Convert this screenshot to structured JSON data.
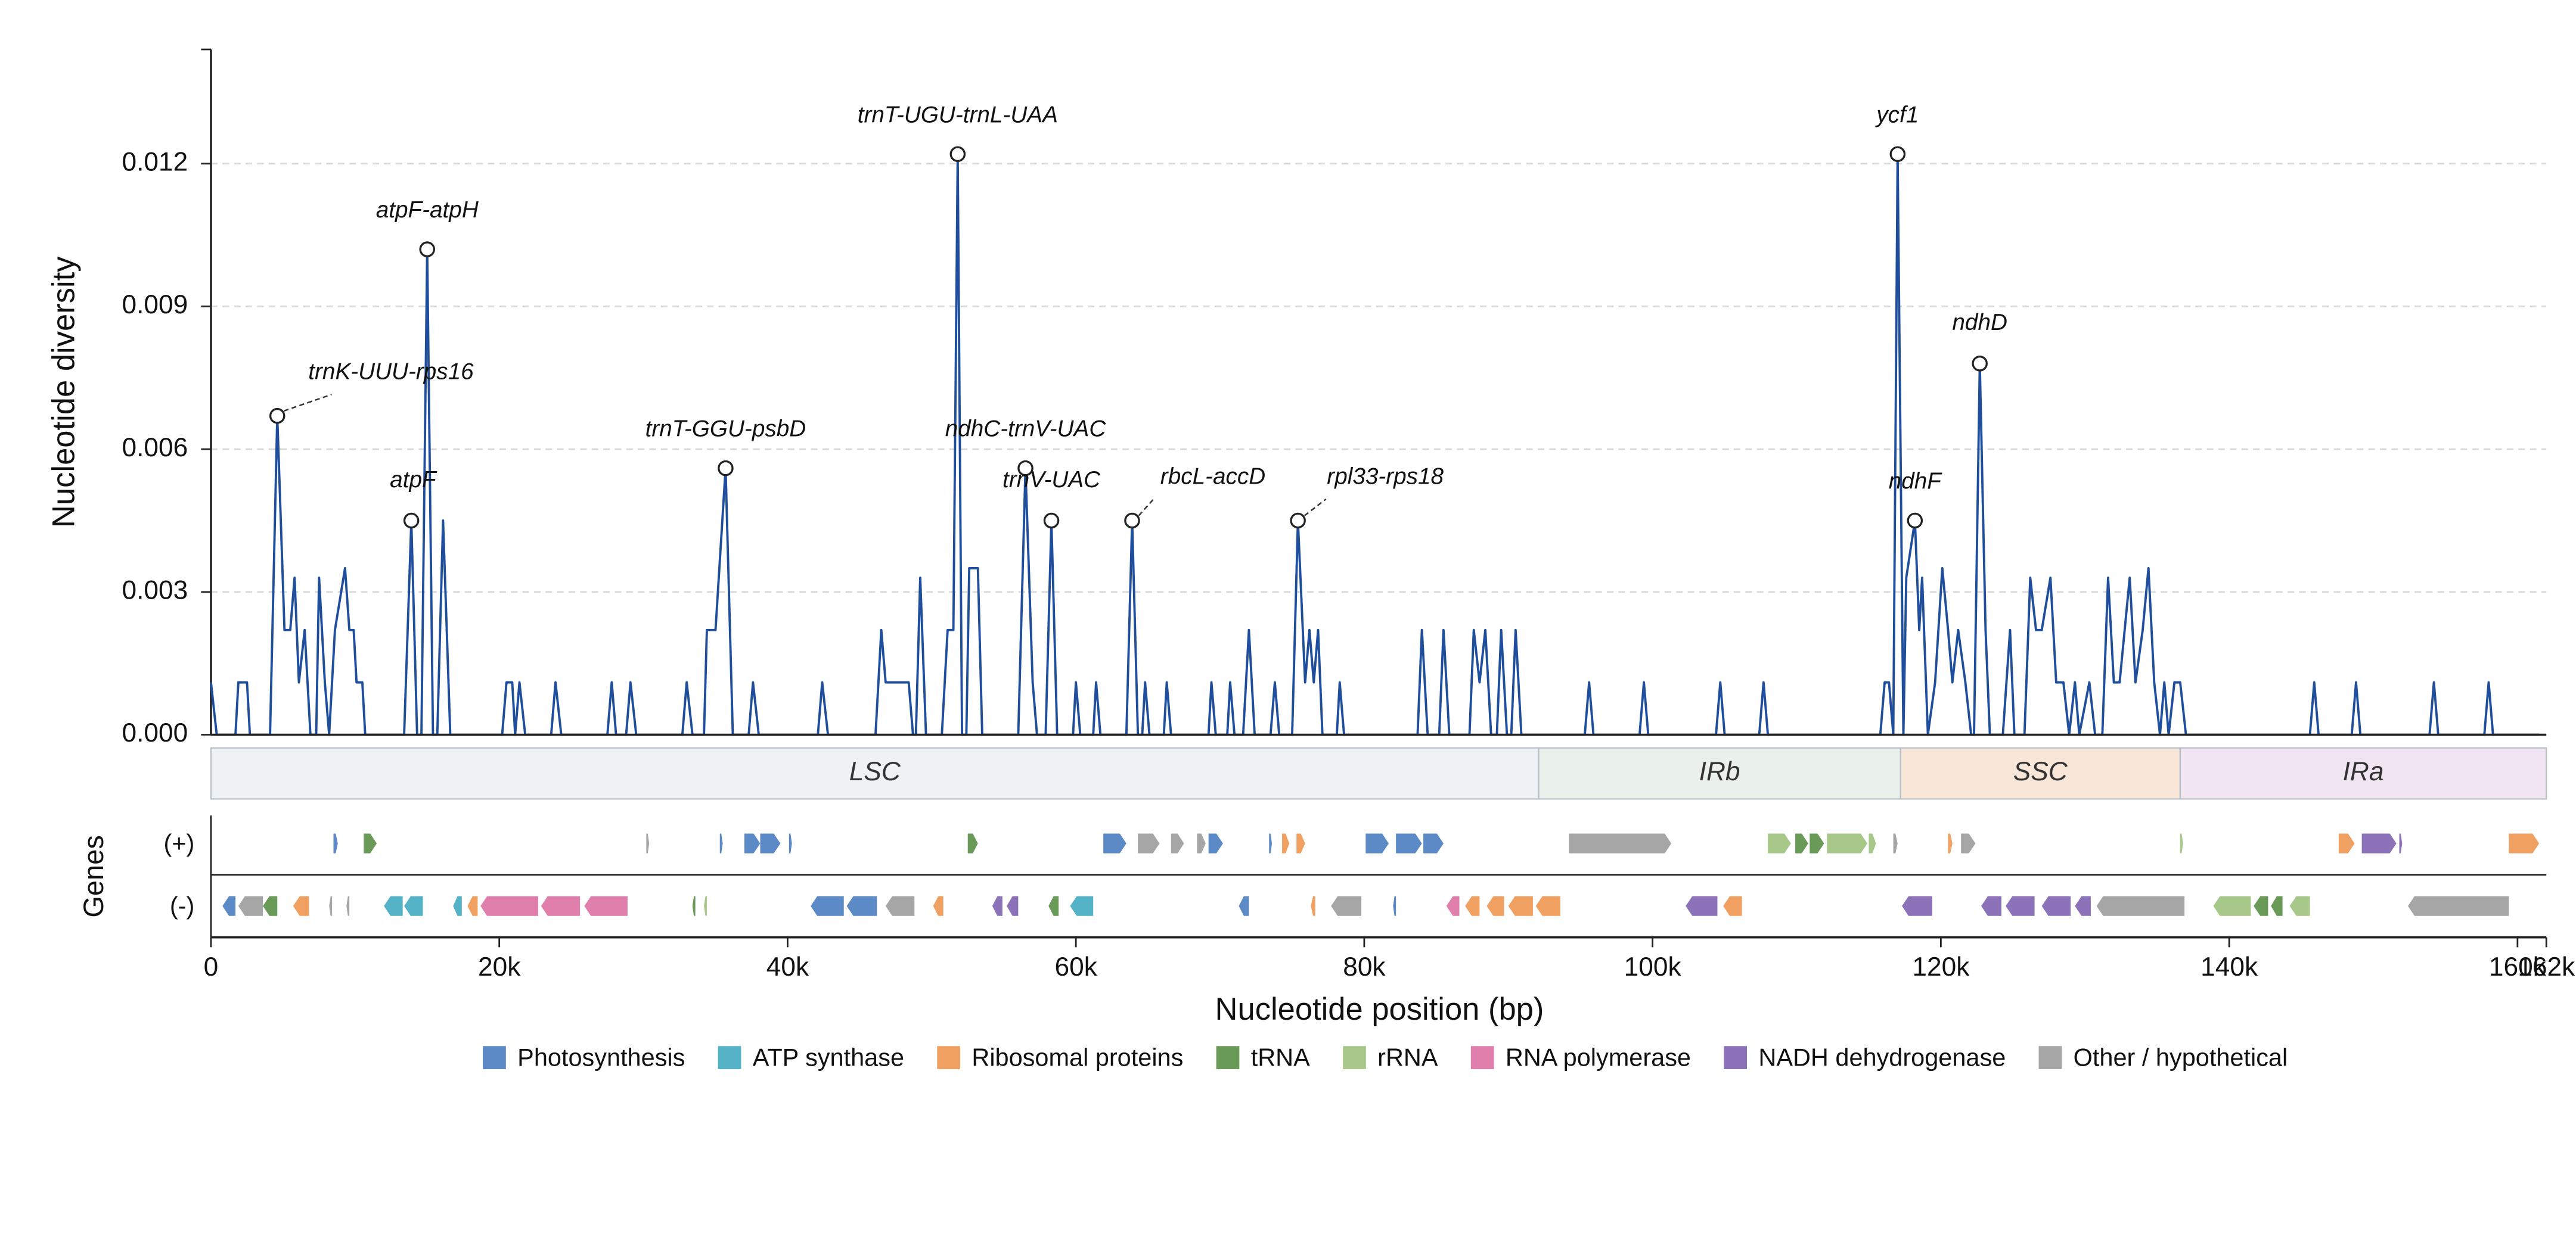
{
  "chart_data": {
    "type": "line",
    "y_label": "Nucleotide diversity",
    "x_label": "Nucleotide position (bp)",
    "genes_label": "Genes",
    "strand_labels": [
      "(+)",
      "(-)"
    ],
    "xlim": [
      0,
      162000
    ],
    "xticks": [
      0,
      {
        "value": 20000,
        "label": "20k"
      },
      {
        "value": 40000,
        "label": "40k"
      },
      {
        "value": 60000,
        "label": "60k"
      },
      {
        "value": 80000,
        "label": "80k"
      },
      {
        "value": 100000,
        "label": "100k"
      },
      {
        "value": 120000,
        "label": "120k"
      },
      {
        "value": 140000,
        "label": "140k"
      },
      {
        "value": 160000,
        "label": "160k"
      },
      {
        "value": 162000,
        "label": "162k"
      }
    ],
    "ylim": [
      0,
      0.0144
    ],
    "yticks": [
      {
        "value": 0,
        "label": "0.000"
      },
      0.003,
      0.006,
      0.009,
      0.012
    ],
    "grid": true,
    "series": [
      {
        "name": "Pi",
        "color": "#1f4e9c",
        "x": [
          0,
          400,
          1700,
          1900,
          2500,
          2700,
          4100,
          4600,
          5100,
          5500,
          5800,
          6100,
          6500,
          6900,
          7300,
          7500,
          7900,
          8200,
          8600,
          9300,
          9600,
          9900,
          10100,
          10500,
          10700,
          13400,
          13900,
          14300,
          14600,
          15000,
          15400,
          15700,
          16100,
          16600,
          20200,
          20500,
          20900,
          21100,
          21400,
          21800,
          23600,
          23900,
          24300,
          27500,
          27800,
          28100,
          28800,
          29100,
          29500,
          32700,
          33000,
          33400,
          34200,
          34400,
          35000,
          35700,
          36200,
          37300,
          37600,
          38000,
          42100,
          42400,
          42800,
          46100,
          46500,
          46800,
          48400,
          48700,
          48900,
          49200,
          49600,
          50700,
          51100,
          51500,
          51800,
          52100,
          52400,
          52600,
          53200,
          53500,
          56000,
          56500,
          57000,
          57300,
          57900,
          58300,
          58700,
          59800,
          60000,
          60300,
          61200,
          61400,
          61700,
          63500,
          63900,
          64300,
          64600,
          64800,
          65100,
          66100,
          66300,
          66600,
          69200,
          69400,
          69700,
          70500,
          70700,
          71000,
          71600,
          72000,
          72400,
          73500,
          73800,
          74100,
          75000,
          75400,
          75900,
          76200,
          76500,
          76800,
          77100,
          78100,
          78300,
          78600,
          83700,
          84000,
          84400,
          85200,
          85500,
          85900,
          87300,
          87600,
          88000,
          88400,
          88800,
          89200,
          89500,
          89900,
          90200,
          90500,
          90900,
          95300,
          95600,
          95900,
          99100,
          99400,
          99700,
          104400,
          104700,
          105000,
          107400,
          107700,
          108000,
          115800,
          116100,
          116400,
          116700,
          117000,
          117400,
          117600,
          118200,
          118500,
          118700,
          119100,
          119600,
          120100,
          120500,
          120800,
          121200,
          121700,
          122100,
          122300,
          122700,
          123100,
          123400,
          124300,
          124800,
          125100,
          125800,
          126200,
          126600,
          127000,
          127600,
          128000,
          128500,
          128900,
          129300,
          129600,
          130300,
          130700,
          131200,
          131600,
          132000,
          132400,
          133100,
          133500,
          134000,
          134400,
          134800,
          135200,
          135500,
          135800,
          136200,
          136600,
          137000,
          145600,
          145900,
          146200,
          148500,
          148800,
          149100,
          153900,
          154200,
          154500,
          157700,
          158000,
          158300,
          161500
        ],
        "values": [
          0.0011,
          0,
          0,
          0.0011,
          0.0011,
          0,
          0,
          0.0067,
          0.0022,
          0.0022,
          0.0033,
          0.0011,
          0.0022,
          0,
          0,
          0.0033,
          0.0011,
          0,
          0.0022,
          0.0035,
          0.0022,
          0.0022,
          0.0011,
          0.0011,
          0,
          0,
          0.0045,
          0,
          0,
          0.0102,
          0,
          0,
          0.0045,
          0,
          0,
          0.0011,
          0.0011,
          0,
          0.0011,
          0,
          0,
          0.0011,
          0,
          0,
          0.0011,
          0,
          0,
          0.0011,
          0,
          0,
          0.0011,
          0,
          0,
          0.0022,
          0.0022,
          0.0056,
          0,
          0,
          0.0011,
          0,
          0,
          0.0011,
          0,
          0,
          0.0022,
          0.0011,
          0.0011,
          0,
          0,
          0.0033,
          0,
          0,
          0.0022,
          0.0022,
          0.0122,
          0,
          0,
          0.0035,
          0.0035,
          0,
          0,
          0.0056,
          0.0011,
          0,
          0,
          0.0045,
          0,
          0,
          0.0011,
          0,
          0,
          0.0011,
          0,
          0,
          0.0045,
          0,
          0,
          0.0011,
          0,
          0,
          0.0011,
          0,
          0,
          0.0011,
          0,
          0,
          0.0011,
          0,
          0,
          0.0022,
          0,
          0,
          0.0011,
          0,
          0,
          0.0045,
          0.0011,
          0.0022,
          0.0011,
          0.0022,
          0,
          0,
          0.0011,
          0,
          0,
          0.0022,
          0,
          0,
          0.0022,
          0,
          0,
          0.0022,
          0.0011,
          0.0022,
          0,
          0,
          0.0022,
          0,
          0,
          0.0022,
          0,
          0,
          0.0011,
          0,
          0,
          0.0011,
          0,
          0,
          0.0011,
          0,
          0,
          0.0011,
          0,
          0,
          0.0011,
          0.0011,
          0,
          0.0122,
          0,
          0.0033,
          0.0045,
          0.0022,
          0.0033,
          0,
          0.0011,
          0.0035,
          0.0022,
          0.0011,
          0.0022,
          0.0011,
          0,
          0,
          0.0078,
          0.0022,
          0,
          0,
          0.0022,
          0,
          0,
          0.0033,
          0.0022,
          0.0022,
          0.0033,
          0.0011,
          0.0011,
          0,
          0.0011,
          0,
          0.0011,
          0,
          0,
          0.0033,
          0.0011,
          0.0011,
          0.0033,
          0.0011,
          0.0022,
          0.0035,
          0.0011,
          0,
          0.0011,
          0,
          0.0011,
          0.0011,
          0,
          0,
          0.0011,
          0,
          0,
          0.0011,
          0,
          0,
          0.0011,
          0,
          0,
          0.0011,
          0,
          0
        ]
      }
    ],
    "annotations": [
      {
        "label": "trnK-UUU-rps16",
        "x": 4600,
        "y": 0.0067
      },
      {
        "label": "atpF-atpH",
        "x": 15000,
        "y": 0.0102
      },
      {
        "label": "atpF",
        "x": 13900,
        "y": 0.0045
      },
      {
        "label": "trnT-GGU-psbD",
        "x": 35700,
        "y": 0.0056
      },
      {
        "label": "trnT-UGU-trnL-UAA",
        "x": 51800,
        "y": 0.0122
      },
      {
        "label": "ndhC-trnV-UAC",
        "x": 56500,
        "y": 0.0056
      },
      {
        "label": "trnV-UAC",
        "x": 58300,
        "y": 0.0045
      },
      {
        "label": "rbcL-accD",
        "x": 63900,
        "y": 0.0045
      },
      {
        "label": "rpl33-rps18",
        "x": 75400,
        "y": 0.0045
      },
      {
        "label": "ycf1",
        "x": 117000,
        "y": 0.0122
      },
      {
        "label": "ndhF",
        "x": 118200,
        "y": 0.0045
      },
      {
        "label": "ndhD",
        "x": 122700,
        "y": 0.0078
      }
    ],
    "regions": [
      {
        "name": "LSC",
        "start": 0,
        "end": 92100,
        "color": "#eef2f5"
      },
      {
        "name": "IRb",
        "start": 92100,
        "end": 117200,
        "color": "#eaf1ea"
      },
      {
        "name": "SSC",
        "start": 117200,
        "end": 136600,
        "color": "#f8e7d9"
      },
      {
        "name": "IRa",
        "start": 136600,
        "end": 162000,
        "color": "#f1e5f1"
      }
    ],
    "gene_categories": [
      {
        "name": "Photosynthesis",
        "color": "#5b8ac6"
      },
      {
        "name": "ATP synthase",
        "color": "#54b3c6"
      },
      {
        "name": "Ribosomal proteins",
        "color": "#f0a060"
      },
      {
        "name": "tRNA",
        "color": "#6a9a58"
      },
      {
        "name": "rRNA",
        "color": "#a8c88a"
      },
      {
        "name": "RNA polymerase",
        "color": "#e07fab"
      },
      {
        "name": "NADH dehydrogenase",
        "color": "#8c72b8"
      },
      {
        "name": "Other / hypothetical",
        "color": "#a6a6a6"
      }
    ],
    "genes": {
      "plus": [
        [
          8500,
          8800,
          0
        ],
        [
          10600,
          11500,
          3
        ],
        [
          30200,
          30400,
          7
        ],
        [
          35300,
          35500,
          0
        ],
        [
          37000,
          38100,
          0
        ],
        [
          38100,
          39500,
          0
        ],
        [
          40100,
          40300,
          0
        ],
        [
          52500,
          53200,
          3
        ],
        [
          61900,
          63500,
          0
        ],
        [
          64300,
          65800,
          7
        ],
        [
          66600,
          67500,
          7
        ],
        [
          68400,
          69000,
          7
        ],
        [
          69200,
          70200,
          0
        ],
        [
          73400,
          73600,
          0
        ],
        [
          74300,
          74800,
          2
        ],
        [
          75300,
          75900,
          2
        ],
        [
          80100,
          81700,
          0
        ],
        [
          82200,
          84000,
          0
        ],
        [
          84100,
          85500,
          0
        ],
        [
          94200,
          101300,
          7
        ],
        [
          108000,
          109600,
          4
        ],
        [
          109900,
          110800,
          3
        ],
        [
          110900,
          111900,
          3
        ],
        [
          112100,
          114900,
          4
        ],
        [
          115000,
          115500,
          4
        ],
        [
          116700,
          117000,
          7
        ],
        [
          120500,
          120800,
          2
        ],
        [
          121400,
          122400,
          7
        ],
        [
          136600,
          136800,
          4
        ],
        [
          147600,
          148700,
          2
        ],
        [
          149200,
          151600,
          6
        ],
        [
          151800,
          152000,
          6
        ],
        [
          159400,
          161500,
          2
        ]
      ],
      "minus": [
        [
          800,
          1700,
          0
        ],
        [
          1900,
          3600,
          7
        ],
        [
          3600,
          4600,
          3
        ],
        [
          5700,
          6800,
          2
        ],
        [
          8200,
          8400,
          7
        ],
        [
          9400,
          9600,
          7
        ],
        [
          12000,
          13300,
          1
        ],
        [
          13400,
          14700,
          1
        ],
        [
          16800,
          17400,
          1
        ],
        [
          17800,
          18500,
          2
        ],
        [
          18700,
          22700,
          5
        ],
        [
          22900,
          25600,
          5
        ],
        [
          25900,
          28900,
          5
        ],
        [
          33400,
          33600,
          3
        ],
        [
          34200,
          34400,
          4
        ],
        [
          41600,
          43900,
          0
        ],
        [
          44100,
          46200,
          0
        ],
        [
          46800,
          48800,
          7
        ],
        [
          50100,
          50800,
          2
        ],
        [
          54200,
          54900,
          6
        ],
        [
          55200,
          56000,
          6
        ],
        [
          58100,
          58800,
          3
        ],
        [
          59600,
          61200,
          1
        ],
        [
          71300,
          72000,
          0
        ],
        [
          76300,
          76600,
          2
        ],
        [
          77700,
          79800,
          7
        ],
        [
          82000,
          82200,
          0
        ],
        [
          85700,
          86600,
          5
        ],
        [
          87000,
          88000,
          2
        ],
        [
          88500,
          89700,
          2
        ],
        [
          90000,
          91700,
          2
        ],
        [
          91900,
          93600,
          2
        ],
        [
          102300,
          104500,
          6
        ],
        [
          104900,
          106200,
          2
        ],
        [
          117300,
          119400,
          6
        ],
        [
          122800,
          124200,
          6
        ],
        [
          124500,
          126500,
          6
        ],
        [
          127000,
          129000,
          6
        ],
        [
          129300,
          130400,
          6
        ],
        [
          130800,
          136900,
          7
        ],
        [
          138900,
          141500,
          4
        ],
        [
          141700,
          142700,
          3
        ],
        [
          142900,
          143700,
          3
        ],
        [
          144200,
          145600,
          4
        ],
        [
          152400,
          159400,
          7
        ]
      ]
    }
  }
}
